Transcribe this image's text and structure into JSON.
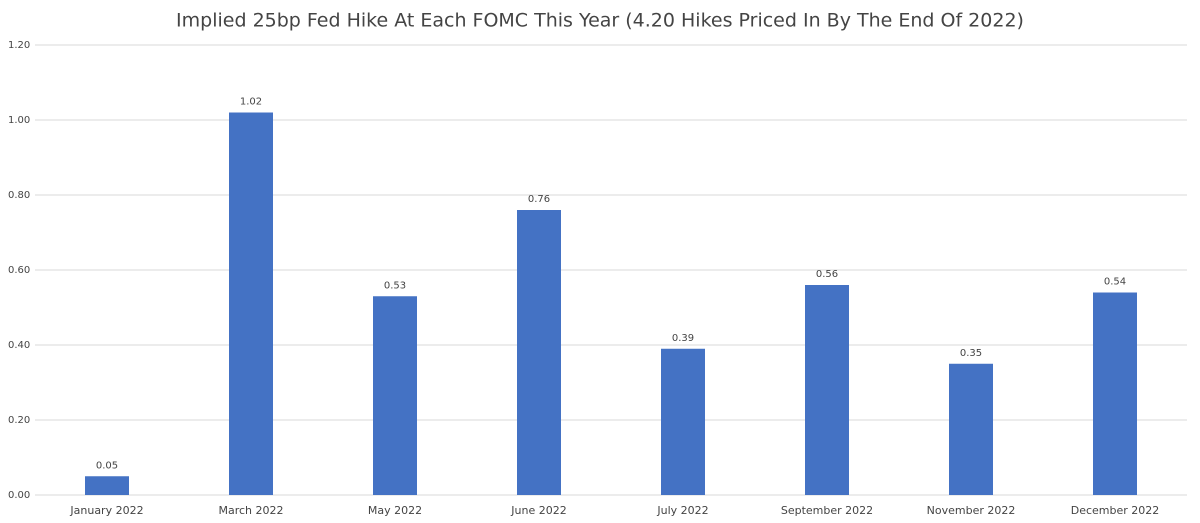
{
  "chart_data": {
    "type": "bar",
    "title": "Implied 25bp Fed Hike At Each FOMC This Year (4.20 Hikes Priced In By The End Of 2022)",
    "categories": [
      "January 2022",
      "March 2022",
      "May 2022",
      "June 2022",
      "July 2022",
      "September 2022",
      "November 2022",
      "December 2022"
    ],
    "values": [
      0.05,
      1.02,
      0.53,
      0.76,
      0.39,
      0.56,
      0.35,
      0.54
    ],
    "color": "#4472c4",
    "ylim": [
      0,
      1.2
    ],
    "yticks": [
      {
        "value": 0,
        "label": "0.00"
      },
      {
        "value": 0.2,
        "label": "0.20"
      },
      {
        "value": 0.4,
        "label": "0.40"
      },
      {
        "value": 0.6,
        "label": "0.60"
      },
      {
        "value": 0.8,
        "label": "0.80"
      },
      {
        "value": 1,
        "label": "1.00"
      },
      {
        "value": 1.2,
        "label": "1.20"
      }
    ],
    "grid": true
  }
}
